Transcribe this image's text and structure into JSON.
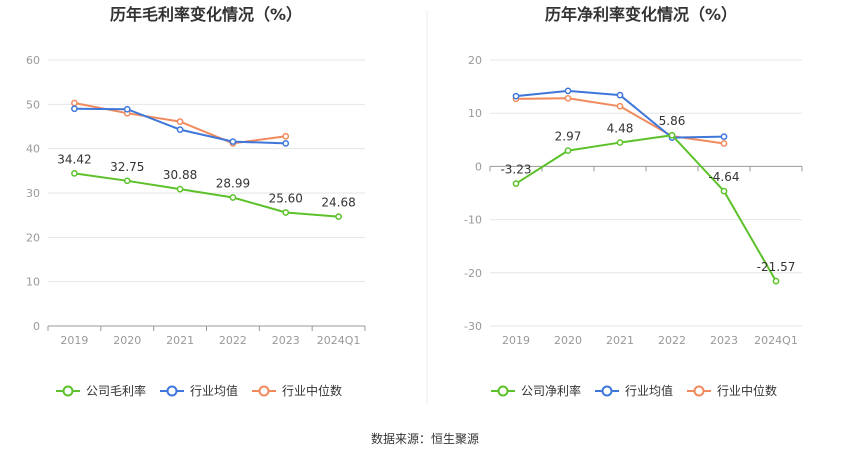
{
  "colors": {
    "company": "#5cc12a",
    "industry_avg": "#3e76da",
    "industry_median": "#f08a5d",
    "axis": "#999999",
    "grid": "#e6e6e6",
    "divider": "#eeeeee",
    "label_text": "#333333"
  },
  "source_text": "数据来源：恒生聚源",
  "chart_data": [
    {
      "type": "line",
      "title": "历年毛利率变化情况（%）",
      "categories": [
        "2019",
        "2020",
        "2021",
        "2022",
        "2023",
        "2024Q1"
      ],
      "ylim": [
        0,
        60
      ],
      "yticks": [
        0,
        10,
        20,
        30,
        40,
        50,
        60
      ],
      "grid": true,
      "legend_position": "bottom-center",
      "series": [
        {
          "name": "公司毛利率",
          "key": "company",
          "values": [
            34.42,
            32.75,
            30.88,
            28.99,
            25.6,
            24.68
          ],
          "labels": [
            "34.42",
            "32.75",
            "30.88",
            "28.99",
            "25.60",
            "24.68"
          ]
        },
        {
          "name": "行业均值",
          "key": "industry_avg",
          "values": [
            49.0,
            48.9,
            44.3,
            41.6,
            41.2,
            null
          ]
        },
        {
          "name": "行业中位数",
          "key": "industry_median",
          "values": [
            50.3,
            48.0,
            46.1,
            41.2,
            42.8,
            null
          ]
        }
      ]
    },
    {
      "type": "line",
      "title": "历年净利率变化情况（%）",
      "categories": [
        "2019",
        "2020",
        "2021",
        "2022",
        "2023",
        "2024Q1"
      ],
      "ylim": [
        -30,
        20
      ],
      "yticks": [
        -30,
        -20,
        -10,
        0,
        10,
        20
      ],
      "grid": true,
      "legend_position": "bottom-center",
      "series": [
        {
          "name": "公司净利率",
          "key": "company",
          "values": [
            -3.23,
            2.97,
            4.48,
            5.86,
            -4.64,
            -21.57
          ],
          "labels": [
            "-3.23",
            "2.97",
            "4.48",
            "5.86",
            "-4.64",
            "-21.57"
          ]
        },
        {
          "name": "行业均值",
          "key": "industry_avg",
          "values": [
            13.2,
            14.2,
            13.4,
            5.4,
            5.6,
            null
          ]
        },
        {
          "name": "行业中位数",
          "key": "industry_median",
          "values": [
            12.7,
            12.8,
            11.3,
            5.7,
            4.3,
            null
          ]
        }
      ]
    }
  ]
}
